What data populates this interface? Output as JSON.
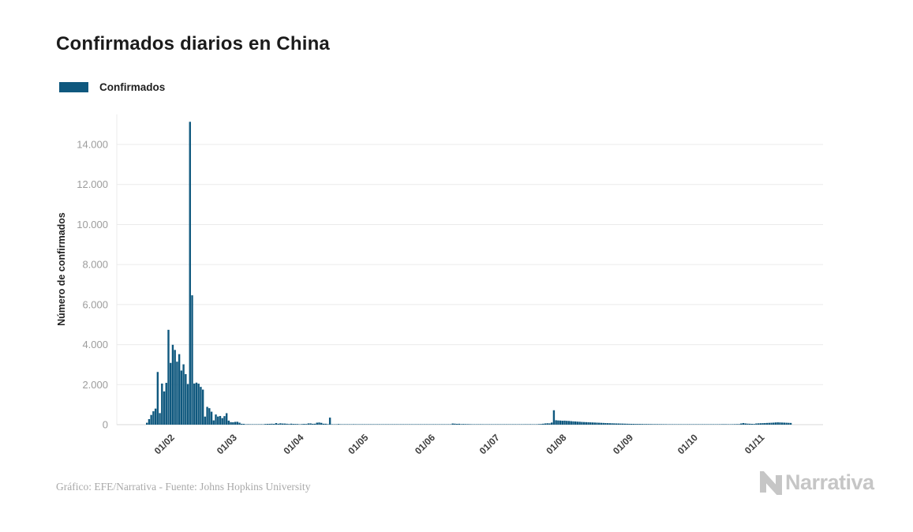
{
  "title": "Confirmados diarios en China",
  "legend": {
    "label": "Confirmados",
    "color": "#0f587e"
  },
  "footer": {
    "credit": "Gráfico: EFE/Narrativa - Fuente: Johns Hopkins University"
  },
  "brand": {
    "name": "Narrativa",
    "color": "#c6c6c6"
  },
  "chart_data": {
    "type": "bar",
    "title": "Confirmados diarios en China",
    "series_name": "Confirmados",
    "xlabel": "",
    "ylabel": "Número de confirmados",
    "bar_color": "#0f587e",
    "grid": true,
    "legend_position": "top-left",
    "ylim": [
      0,
      15500
    ],
    "yticks": [
      0,
      2000,
      4000,
      6000,
      8000,
      10000,
      12000,
      14000
    ],
    "ytick_labels": [
      "0",
      "2.000",
      "4.000",
      "6.000",
      "8.000",
      "10.000",
      "12.000",
      "14.000"
    ],
    "x_domain": [
      "2020-01-09",
      "2020-12-02"
    ],
    "xtick_dates": [
      "2020-02-01",
      "2020-03-01",
      "2020-04-01",
      "2020-05-01",
      "2020-06-01",
      "2020-07-01",
      "2020-08-01",
      "2020-09-01",
      "2020-10-01",
      "2020-11-01"
    ],
    "xtick_labels": [
      "01/02",
      "01/03",
      "01/04",
      "01/05",
      "01/06",
      "01/07",
      "01/08",
      "01/09",
      "01/10",
      "01/11"
    ],
    "start_date": "2020-01-22",
    "values": [
      0,
      95,
      277,
      486,
      669,
      802,
      2632,
      578,
      2054,
      1661,
      2089,
      4739,
      3086,
      3991,
      3733,
      3147,
      3523,
      2704,
      3015,
      2525,
      2032,
      15133,
      6463,
      2055,
      2100,
      2048,
      1888,
      1752,
      403,
      889,
      823,
      648,
      214,
      508,
      406,
      433,
      327,
      427,
      573,
      202,
      125,
      119,
      139,
      143,
      99,
      44,
      40,
      19,
      24,
      15,
      8,
      11,
      20,
      16,
      21,
      13,
      34,
      39,
      41,
      46,
      39,
      78,
      47,
      67,
      55,
      54,
      45,
      31,
      48,
      36,
      35,
      31,
      19,
      30,
      39,
      32,
      62,
      63,
      42,
      46,
      99,
      108,
      89,
      46,
      46,
      26,
      352,
      16,
      12,
      11,
      30,
      10,
      6,
      6,
      11,
      3,
      6,
      22,
      4,
      4,
      12,
      2,
      3,
      3,
      1,
      2,
      1,
      1,
      14,
      17,
      1,
      6,
      7,
      4,
      8,
      5,
      7,
      6,
      5,
      2,
      4,
      4,
      3,
      11,
      7,
      1,
      2,
      2,
      4,
      2,
      16,
      5,
      3,
      1,
      4,
      3,
      5,
      4,
      4,
      3,
      11,
      7,
      11,
      57,
      49,
      40,
      44,
      28,
      32,
      27,
      26,
      25,
      18,
      19,
      19,
      21,
      21,
      17,
      12,
      19,
      3,
      5,
      5,
      3,
      8,
      4,
      8,
      7,
      9,
      4,
      2,
      7,
      8,
      10,
      6,
      6,
      10,
      22,
      16,
      22,
      17,
      14,
      19,
      28,
      34,
      46,
      61,
      68,
      64,
      105,
      720,
      220,
      210,
      205,
      195,
      200,
      190,
      185,
      175,
      165,
      160,
      150,
      145,
      135,
      130,
      125,
      120,
      115,
      110,
      105,
      100,
      95,
      90,
      85,
      80,
      75,
      72,
      68,
      64,
      60,
      58,
      55,
      52,
      48,
      45,
      42,
      40,
      38,
      36,
      35,
      34,
      32,
      30,
      30,
      28,
      28,
      26,
      25,
      25,
      24,
      24,
      22,
      22,
      20,
      20,
      20,
      18,
      18,
      16,
      15,
      15,
      14,
      12,
      20,
      20,
      18,
      18,
      16,
      15,
      15,
      14,
      12,
      12,
      12,
      14,
      16,
      18,
      20,
      22,
      24,
      22,
      20,
      20,
      22,
      24,
      26,
      28,
      60,
      80,
      60,
      50,
      45,
      40,
      35,
      60,
      65,
      70,
      75,
      80,
      85,
      90,
      95,
      100,
      110,
      115,
      110,
      105,
      100,
      95,
      90,
      85
    ]
  }
}
